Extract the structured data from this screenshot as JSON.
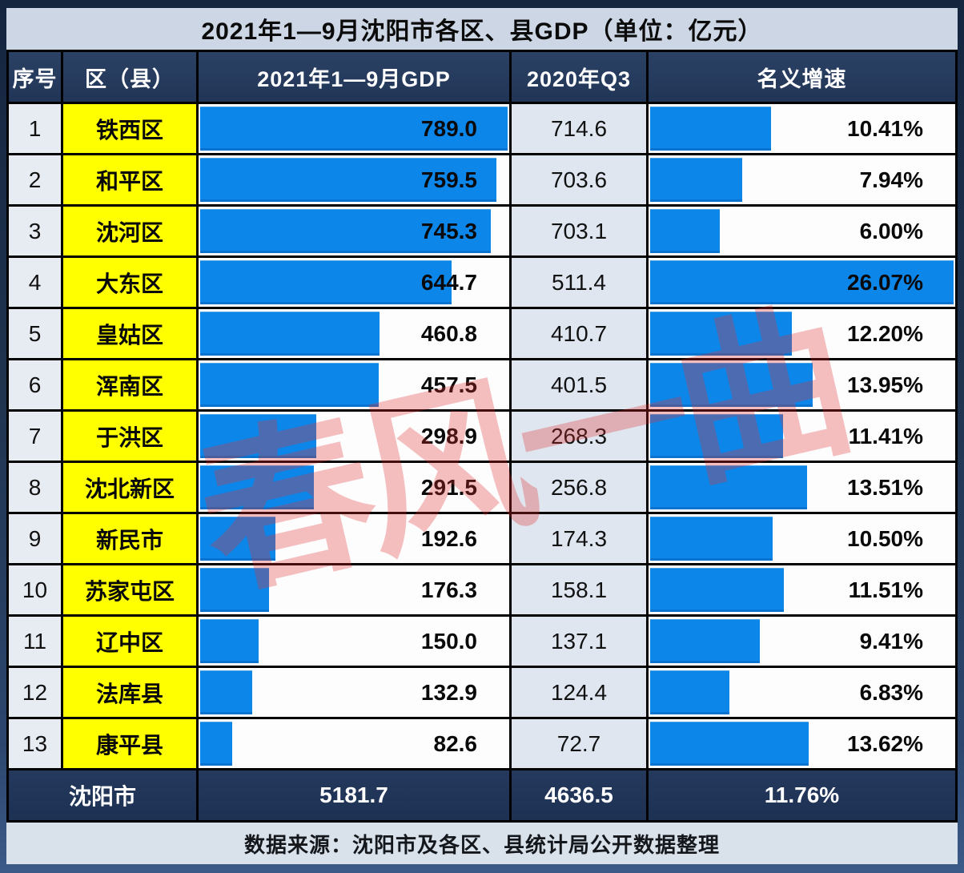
{
  "title": "2021年1—9月沈阳市各区、县GDP（单位：亿元）",
  "footer": {
    "source_text": "数据来源：沈阳市及各区、县统计局公开数据整理"
  },
  "watermark": {
    "text": "春风一曲",
    "color": "#e03030"
  },
  "colors": {
    "bar_blue": "#0d86e9",
    "district_yellow": "#ffff00",
    "header_navy": "#24395b",
    "total_navy": "#1f3457",
    "index_cell": "#e7ebf2",
    "q3_cell": "#dfe6f0",
    "title_band": "#ccd6e4",
    "footer_band": "#d9e1ea",
    "border_black": "#000000"
  },
  "chart_data": {
    "type": "table",
    "title": "2021年1—9月沈阳市各区、县GDP（单位：亿元）",
    "columns": [
      "序号",
      "区（县）",
      "2021年1—9月GDP",
      "2020年Q3",
      "名义增速"
    ],
    "bar_columns": [
      "2021年1—9月GDP",
      "名义增速"
    ],
    "gdp_bar_max": 789.0,
    "growth_bar_max": 26.07,
    "rows": [
      {
        "no": "1",
        "district": "铁西区",
        "gdp": "789.0",
        "q3": "714.6",
        "growth": "10.41%"
      },
      {
        "no": "2",
        "district": "和平区",
        "gdp": "759.5",
        "q3": "703.6",
        "growth": "7.94%"
      },
      {
        "no": "3",
        "district": "沈河区",
        "gdp": "745.3",
        "q3": "703.1",
        "growth": "6.00%"
      },
      {
        "no": "4",
        "district": "大东区",
        "gdp": "644.7",
        "q3": "511.4",
        "growth": "26.07%"
      },
      {
        "no": "5",
        "district": "皇姑区",
        "gdp": "460.8",
        "q3": "410.7",
        "growth": "12.20%"
      },
      {
        "no": "6",
        "district": "浑南区",
        "gdp": "457.5",
        "q3": "401.5",
        "growth": "13.95%"
      },
      {
        "no": "7",
        "district": "于洪区",
        "gdp": "298.9",
        "q3": "268.3",
        "growth": "11.41%"
      },
      {
        "no": "8",
        "district": "沈北新区",
        "gdp": "291.5",
        "q3": "256.8",
        "growth": "13.51%"
      },
      {
        "no": "9",
        "district": "新民市",
        "gdp": "192.6",
        "q3": "174.3",
        "growth": "10.50%"
      },
      {
        "no": "10",
        "district": "苏家屯区",
        "gdp": "176.3",
        "q3": "158.1",
        "growth": "11.51%"
      },
      {
        "no": "11",
        "district": "辽中区",
        "gdp": "150.0",
        "q3": "137.1",
        "growth": "9.41%"
      },
      {
        "no": "12",
        "district": "法库县",
        "gdp": "132.9",
        "q3": "124.4",
        "growth": "6.83%"
      },
      {
        "no": "13",
        "district": "康平县",
        "gdp": "82.6",
        "q3": "72.7",
        "growth": "13.62%"
      }
    ],
    "total_row": {
      "label": "沈阳市",
      "gdp": "5181.7",
      "q3": "4636.5",
      "growth": "11.76%"
    }
  }
}
